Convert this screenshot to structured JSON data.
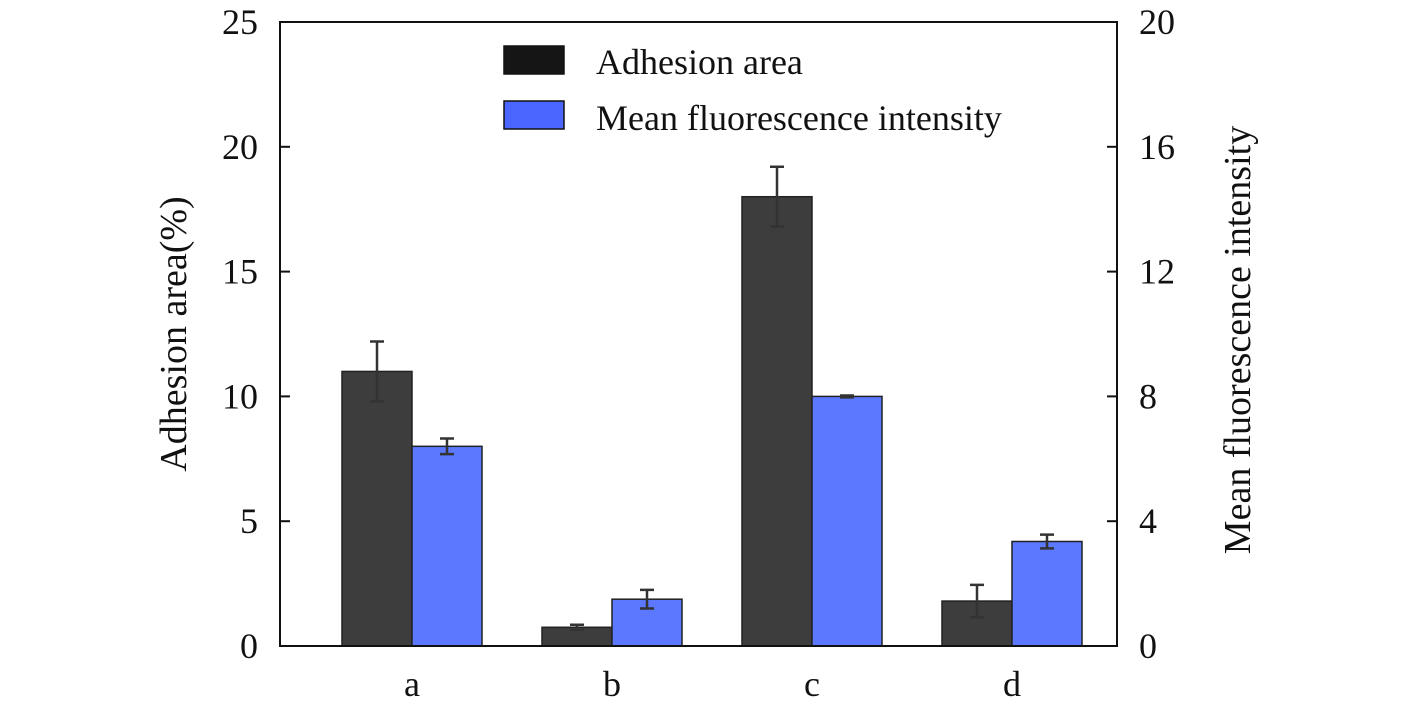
{
  "chart_data": {
    "type": "bar",
    "categories": [
      "a",
      "b",
      "c",
      "d"
    ],
    "series": [
      {
        "name": "Adhesion area",
        "axis": "left",
        "color": "#3d3d3d",
        "legend_color": "#151515",
        "values": [
          11.0,
          0.75,
          18.0,
          1.8
        ],
        "errors": [
          1.2,
          0.1,
          1.2,
          0.65
        ]
      },
      {
        "name": "Mean fluorescence intensity",
        "axis": "right",
        "color": "#5b78ff",
        "legend_color": "#4a66ff",
        "values": [
          6.4,
          1.5,
          8.0,
          3.35
        ],
        "errors": [
          0.25,
          0.3,
          0.03,
          0.22
        ]
      }
    ],
    "ylabel": "Adhesion area(%)",
    "ylabel_right": "Mean fluorescence intensity",
    "xlabel": "",
    "ylim": [
      0,
      25
    ],
    "ylim_right": [
      0,
      20
    ],
    "yticks": [
      0,
      5,
      10,
      15,
      20,
      25
    ],
    "yticks_right": [
      0,
      4,
      8,
      12,
      16,
      20
    ],
    "legend_position": "top-center",
    "grid": false
  }
}
